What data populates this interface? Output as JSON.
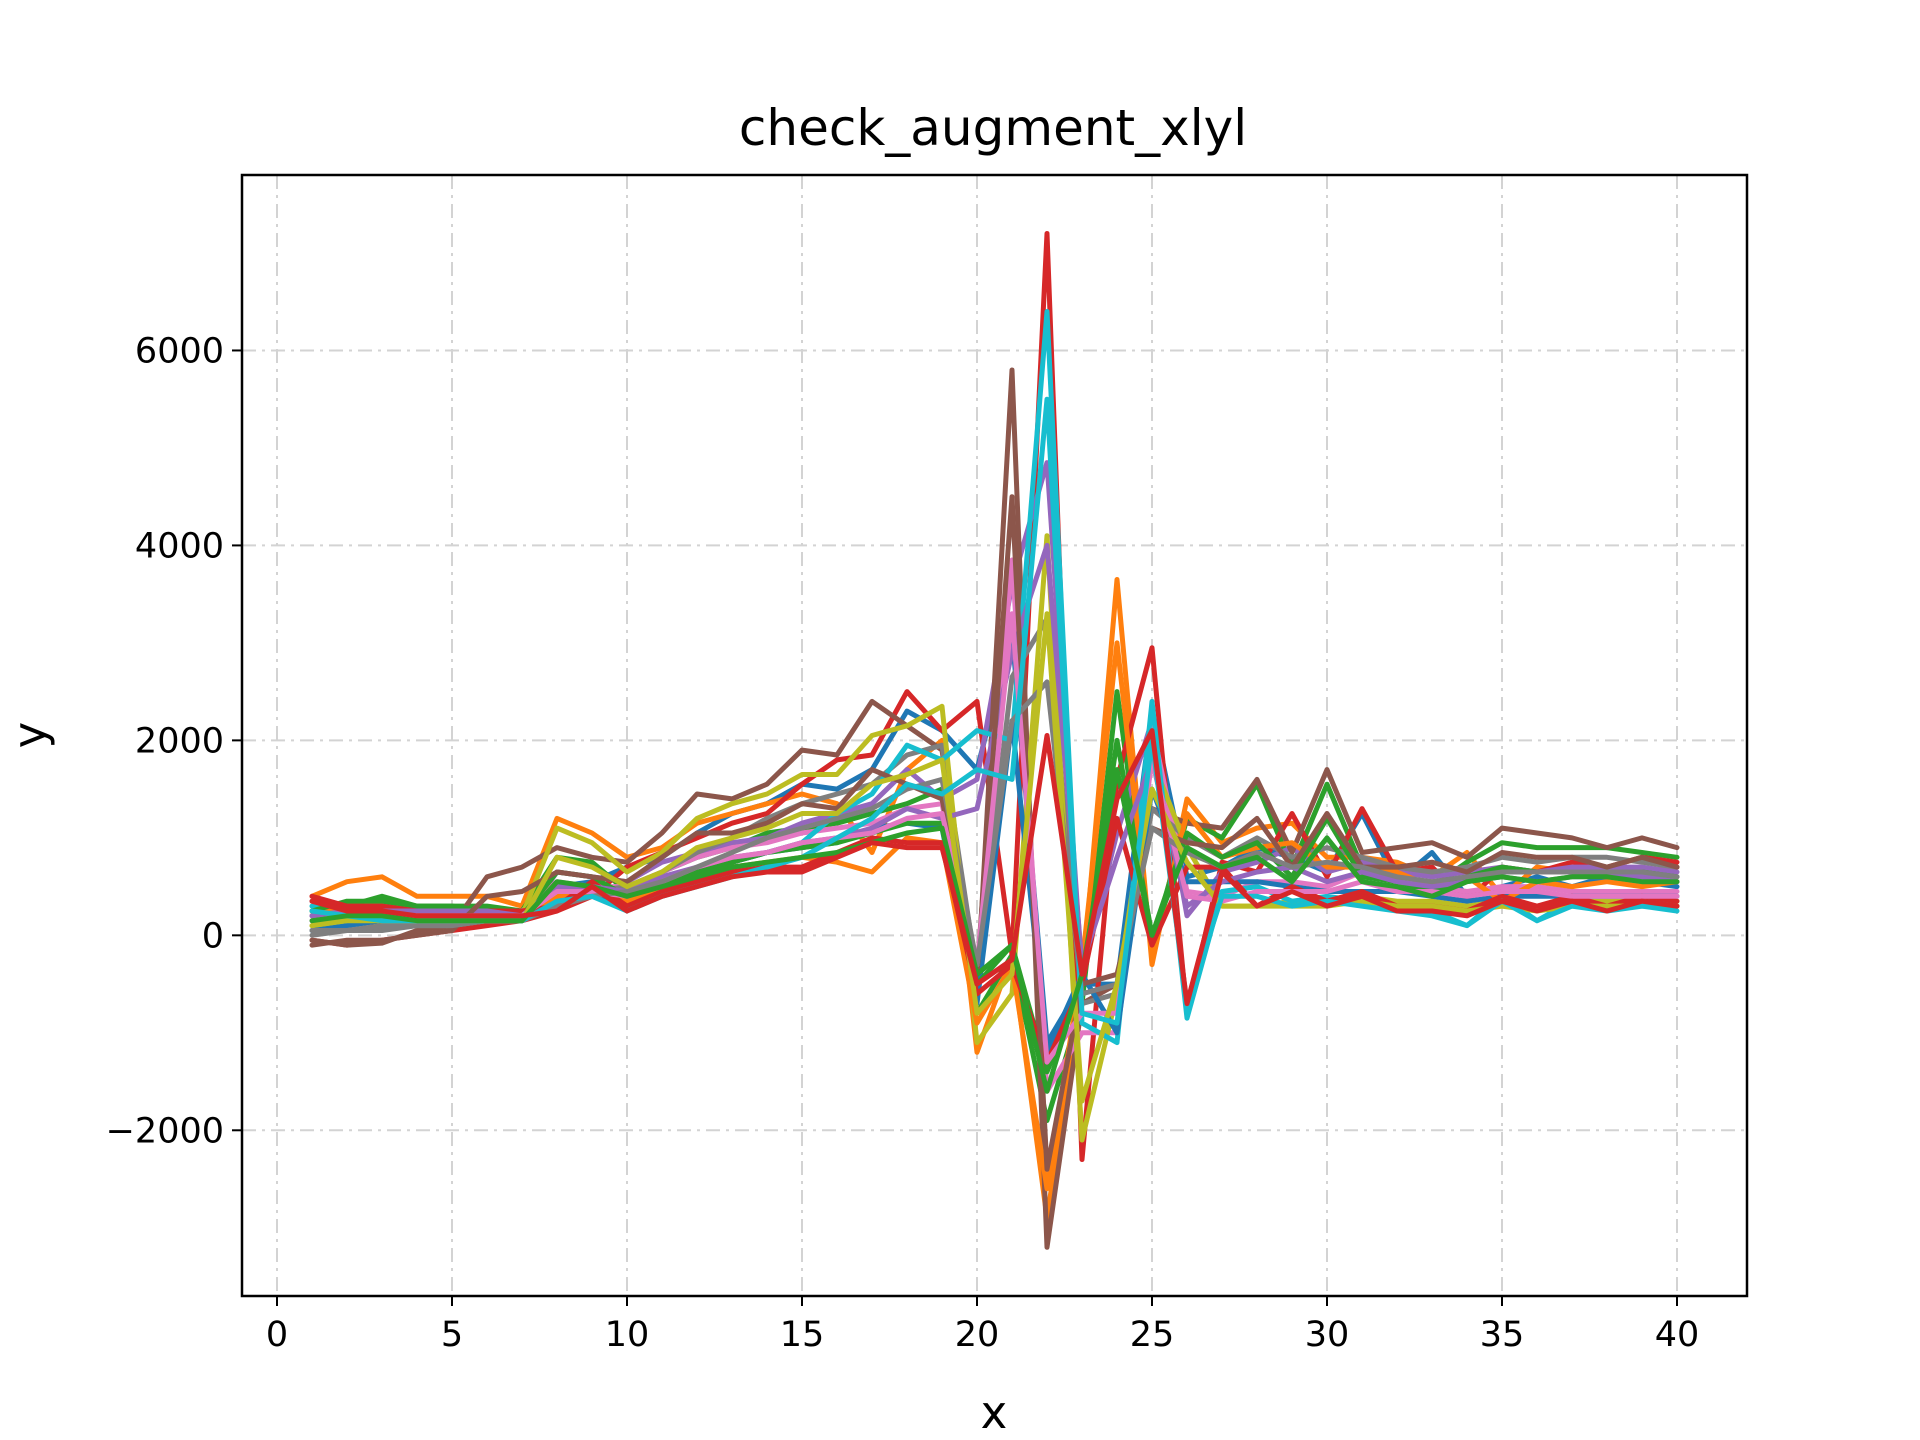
{
  "chart_data": {
    "type": "line",
    "title": "check_augment_xlyl",
    "xlabel": "x",
    "ylabel": "y",
    "xlim": [
      -1,
      42
    ],
    "ylim": [
      -3700,
      7800
    ],
    "xticks": [
      0,
      5,
      10,
      15,
      20,
      25,
      30,
      35,
      40
    ],
    "yticks": [
      -2000,
      0,
      2000,
      4000,
      6000
    ],
    "ytick_labels": [
      "−2000",
      "0",
      "2000",
      "4000",
      "6000"
    ],
    "grid": true,
    "x": [
      1,
      2,
      3,
      4,
      5,
      6,
      7,
      8,
      9,
      10,
      11,
      12,
      13,
      14,
      15,
      16,
      17,
      18,
      19,
      20,
      21,
      22,
      23,
      24,
      25,
      26,
      27,
      28,
      29,
      30,
      31,
      32,
      33,
      34,
      35,
      36,
      37,
      38,
      39,
      40
    ],
    "series": [
      {
        "color": "#1f77b4",
        "values": [
          350,
          300,
          250,
          200,
          200,
          220,
          250,
          500,
          550,
          700,
          800,
          1050,
          1250,
          1350,
          1550,
          1500,
          1700,
          2300,
          2100,
          1700,
          3100,
          -1100,
          -500,
          -500,
          2300,
          600,
          700,
          900,
          800,
          650,
          1250,
          550,
          850,
          400,
          500,
          600,
          500,
          600,
          550,
          500
        ]
      },
      {
        "color": "#ff7f0e",
        "values": [
          400,
          550,
          600,
          400,
          400,
          400,
          300,
          1200,
          1050,
          800,
          900,
          1150,
          1250,
          1350,
          1450,
          1350,
          850,
          1700,
          2000,
          -1200,
          -200,
          -2900,
          -500,
          3650,
          -300,
          1400,
          950,
          1100,
          1150,
          800,
          800,
          750,
          600,
          850,
          400,
          700,
          650,
          700,
          650,
          700
        ]
      },
      {
        "color": "#2ca02c",
        "values": [
          200,
          300,
          400,
          300,
          300,
          300,
          250,
          800,
          750,
          450,
          650,
          800,
          900,
          1050,
          1100,
          1150,
          1250,
          1350,
          1500,
          -800,
          -200,
          -1900,
          -700,
          2500,
          -100,
          1200,
          1000,
          1550,
          700,
          1550,
          700,
          650,
          500,
          750,
          950,
          900,
          900,
          900,
          850,
          800
        ]
      },
      {
        "color": "#d62728",
        "values": [
          -50,
          -100,
          -50,
          0,
          50,
          100,
          150,
          250,
          400,
          700,
          850,
          1000,
          1150,
          1250,
          1550,
          1800,
          1850,
          2500,
          2100,
          2400,
          -200,
          7200,
          -2300,
          1600,
          2950,
          -800,
          750,
          650,
          1250,
          600,
          1300,
          650,
          700,
          350,
          700,
          650,
          750,
          700,
          800,
          750
        ]
      },
      {
        "color": "#9467bd",
        "values": [
          150,
          200,
          300,
          250,
          250,
          250,
          150,
          650,
          600,
          550,
          750,
          850,
          950,
          1000,
          1150,
          1250,
          1350,
          1700,
          1400,
          1600,
          3600,
          4850,
          -400,
          1050,
          2200,
          200,
          650,
          750,
          900,
          650,
          750,
          650,
          600,
          650,
          700,
          650,
          700,
          700,
          700,
          650
        ]
      },
      {
        "color": "#8c564b",
        "values": [
          -50,
          -100,
          -80,
          50,
          100,
          600,
          700,
          900,
          800,
          750,
          1050,
          1450,
          1400,
          1550,
          1900,
          1850,
          2400,
          2150,
          1900,
          -600,
          5800,
          -3200,
          -700,
          -500,
          1300,
          1150,
          1100,
          1600,
          850,
          1700,
          850,
          900,
          950,
          800,
          1100,
          1050,
          1000,
          900,
          1000,
          900
        ]
      },
      {
        "color": "#e377c2",
        "values": [
          200,
          250,
          250,
          200,
          200,
          200,
          250,
          550,
          500,
          500,
          650,
          800,
          900,
          950,
          1050,
          1100,
          1150,
          1300,
          1350,
          -400,
          3850,
          -1600,
          -1000,
          -1000,
          2150,
          450,
          400,
          550,
          550,
          500,
          650,
          550,
          500,
          450,
          500,
          500,
          450,
          450,
          450,
          450
        ]
      },
      {
        "color": "#7f7f7f",
        "values": [
          0,
          50,
          50,
          100,
          100,
          150,
          150,
          350,
          450,
          500,
          650,
          850,
          1000,
          1200,
          1350,
          1450,
          1550,
          1850,
          1950,
          -400,
          2650,
          3250,
          -700,
          -600,
          1300,
          1000,
          800,
          1000,
          800,
          900,
          800,
          700,
          650,
          700,
          800,
          750,
          800,
          800,
          750,
          700
        ]
      },
      {
        "color": "#bcbd22",
        "values": [
          100,
          150,
          200,
          200,
          200,
          200,
          200,
          1100,
          950,
          650,
          850,
          1200,
          1350,
          1450,
          1650,
          1650,
          2050,
          2150,
          2350,
          -1100,
          -600,
          4100,
          -2100,
          -600,
          1800,
          900,
          300,
          300,
          350,
          350,
          400,
          350,
          350,
          300,
          350,
          300,
          350,
          350,
          350,
          350
        ]
      },
      {
        "color": "#17becf",
        "values": [
          300,
          200,
          150,
          150,
          150,
          150,
          150,
          400,
          450,
          300,
          450,
          600,
          750,
          850,
          950,
          1250,
          1450,
          1950,
          1800,
          2100,
          2000,
          6400,
          -900,
          -1100,
          2400,
          -850,
          450,
          500,
          350,
          400,
          350,
          300,
          250,
          100,
          400,
          150,
          350,
          300,
          350,
          300
        ]
      },
      {
        "color": "#1f77b4",
        "values": [
          50,
          100,
          150,
          150,
          150,
          150,
          150,
          350,
          400,
          350,
          500,
          650,
          750,
          850,
          900,
          950,
          1100,
          1150,
          1100,
          -700,
          2200,
          -1200,
          -400,
          -1000,
          1500,
          550,
          550,
          550,
          500,
          450,
          450,
          450,
          400,
          350,
          400,
          400,
          400,
          400,
          400,
          400
        ]
      },
      {
        "color": "#ff7f0e",
        "values": [
          250,
          300,
          300,
          250,
          250,
          250,
          200,
          400,
          450,
          350,
          500,
          600,
          700,
          750,
          800,
          750,
          650,
          1000,
          950,
          -900,
          -300,
          -2600,
          -300,
          3000,
          -200,
          1250,
          800,
          900,
          950,
          700,
          700,
          650,
          500,
          600,
          350,
          550,
          500,
          550,
          500,
          550
        ]
      },
      {
        "color": "#2ca02c",
        "values": [
          250,
          350,
          350,
          300,
          300,
          250,
          200,
          650,
          600,
          400,
          550,
          650,
          750,
          850,
          900,
          950,
          1050,
          1150,
          1150,
          -500,
          -100,
          -1400,
          -500,
          2000,
          0,
          1050,
          800,
          950,
          600,
          1200,
          600,
          550,
          450,
          600,
          700,
          650,
          650,
          650,
          650,
          600
        ]
      },
      {
        "color": "#d62728",
        "values": [
          400,
          300,
          300,
          250,
          250,
          250,
          250,
          300,
          550,
          300,
          450,
          550,
          650,
          700,
          700,
          850,
          1000,
          950,
          950,
          -600,
          -300,
          -1300,
          -500,
          1200,
          -100,
          700,
          700,
          300,
          500,
          350,
          450,
          300,
          300,
          250,
          400,
          300,
          400,
          300,
          400,
          350
        ]
      },
      {
        "color": "#9467bd",
        "values": [
          200,
          250,
          250,
          250,
          250,
          250,
          200,
          500,
          500,
          450,
          600,
          700,
          800,
          850,
          950,
          1000,
          1100,
          1300,
          1200,
          1300,
          2900,
          4000,
          -300,
          800,
          1800,
          300,
          550,
          650,
          700,
          550,
          650,
          550,
          500,
          550,
          600,
          550,
          600,
          600,
          600,
          550
        ]
      },
      {
        "color": "#8c564b",
        "values": [
          -100,
          -50,
          -50,
          0,
          50,
          400,
          450,
          650,
          600,
          550,
          800,
          1050,
          1050,
          1150,
          1350,
          1300,
          1700,
          1550,
          1400,
          -400,
          4500,
          -2400,
          -500,
          -400,
          1100,
          950,
          900,
          1200,
          700,
          1250,
          700,
          700,
          750,
          650,
          850,
          800,
          800,
          700,
          800,
          700
        ]
      },
      {
        "color": "#e377c2",
        "values": [
          150,
          200,
          200,
          200,
          200,
          200,
          200,
          450,
          450,
          400,
          550,
          700,
          800,
          850,
          950,
          1000,
          1050,
          1200,
          1250,
          -300,
          3300,
          -1300,
          -800,
          -800,
          1800,
          400,
          350,
          450,
          450,
          450,
          550,
          450,
          450,
          400,
          450,
          450,
          400,
          400,
          400,
          400
        ]
      },
      {
        "color": "#7f7f7f",
        "values": [
          50,
          50,
          100,
          100,
          100,
          150,
          150,
          300,
          400,
          450,
          550,
          700,
          850,
          1000,
          1100,
          1200,
          1300,
          1500,
          1600,
          -300,
          2200,
          2600,
          -600,
          -500,
          1100,
          850,
          700,
          850,
          700,
          750,
          700,
          600,
          550,
          600,
          650,
          650,
          650,
          650,
          650,
          600
        ]
      },
      {
        "color": "#bcbd22",
        "values": [
          100,
          150,
          150,
          150,
          150,
          150,
          150,
          800,
          700,
          500,
          650,
          900,
          1000,
          1100,
          1250,
          1250,
          1550,
          1650,
          1800,
          -800,
          -400,
          3300,
          -1700,
          -500,
          1500,
          750,
          300,
          300,
          300,
          300,
          350,
          300,
          300,
          250,
          300,
          250,
          300,
          300,
          300,
          300
        ]
      },
      {
        "color": "#17becf",
        "values": [
          250,
          200,
          150,
          150,
          150,
          150,
          150,
          350,
          400,
          250,
          400,
          500,
          600,
          700,
          800,
          1000,
          1200,
          1550,
          1450,
          1700,
          1600,
          5500,
          -800,
          -900,
          2000,
          -700,
          400,
          400,
          300,
          350,
          300,
          250,
          200,
          100,
          350,
          150,
          300,
          250,
          300,
          250
        ]
      },
      {
        "color": "#2ca02c",
        "values": [
          150,
          200,
          200,
          150,
          150,
          150,
          150,
          550,
          500,
          400,
          500,
          600,
          700,
          750,
          800,
          850,
          950,
          1050,
          1100,
          -400,
          -100,
          -1600,
          -400,
          1700,
          0,
          900,
          700,
          800,
          550,
          1000,
          550,
          500,
          400,
          550,
          600,
          550,
          600,
          600,
          550,
          550
        ]
      },
      {
        "color": "#d62728",
        "values": [
          350,
          250,
          250,
          200,
          200,
          200,
          200,
          250,
          500,
          250,
          400,
          500,
          600,
          650,
          650,
          800,
          950,
          900,
          900,
          -500,
          -250,
          2050,
          -400,
          1400,
          2100,
          -700,
          650,
          300,
          450,
          300,
          400,
          250,
          250,
          200,
          350,
          250,
          350,
          250,
          350,
          300
        ]
      }
    ]
  }
}
